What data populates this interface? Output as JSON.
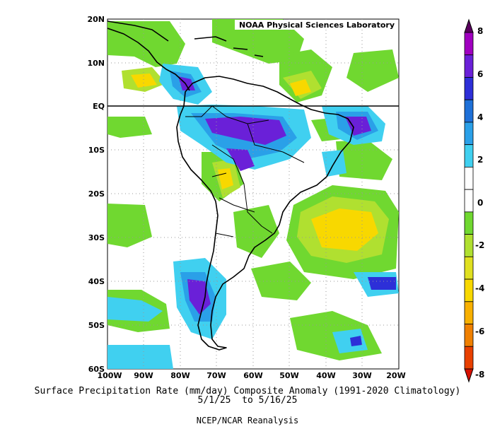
{
  "map": {
    "credit": "NOAA Physical Sciences Laboratory",
    "lat_labels": [
      "20N",
      "10N",
      "EQ",
      "10S",
      "20S",
      "30S",
      "40S",
      "50S",
      "60S"
    ],
    "lon_labels": [
      "100W",
      "90W",
      "80W",
      "70W",
      "60W",
      "50W",
      "40W",
      "30W",
      "20W"
    ],
    "colorbar": {
      "labels": [
        "8",
        "6",
        "4",
        "2",
        "0",
        "-2",
        "-4",
        "-6",
        "-8"
      ],
      "colors": [
        "#5a005f",
        "#a000c0",
        "#6a20d8",
        "#2d2fd8",
        "#1e70d8",
        "#2aa0e8",
        "#40d0f0",
        "#ffffff",
        "#ffffff",
        "#70d830",
        "#b0e030",
        "#e0e020",
        "#f8d800",
        "#f8b000",
        "#f08000",
        "#e84000",
        "#d81000"
      ]
    }
  },
  "caption": {
    "line1": "Surface Precipitation Rate (mm/day) Composite Anomaly (1991-2020 Climatology)",
    "line2": "5/1/25  to 5/16/25",
    "line3": "NCEP/NCAR Reanalysis"
  }
}
